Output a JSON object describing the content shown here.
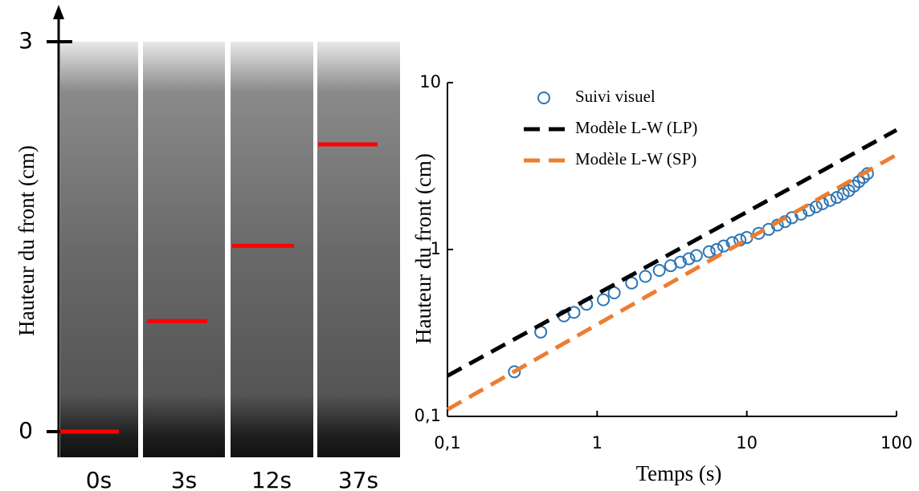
{
  "chart_data": [
    {
      "type": "strip",
      "ylabel": "Hauteur du front (cm)",
      "categories": [
        "0s",
        "3s",
        "12s",
        "37s"
      ],
      "values": [
        0,
        0.85,
        1.43,
        2.21
      ],
      "color": "#ff0000",
      "ylim": [
        0,
        3
      ],
      "yticks": [
        0,
        3
      ]
    },
    {
      "type": "scatter-line",
      "xlabel": "Temps (s)",
      "ylabel": "Hauteur du front (cm)",
      "xscale": "log",
      "yscale": "log",
      "legend": "upper left",
      "xlim": [
        0.1,
        100
      ],
      "ylim": [
        0.1,
        10
      ],
      "xticks": [
        {
          "value": 0.1,
          "label": "0,1"
        },
        1,
        10,
        100
      ],
      "yticks": [
        {
          "value": 0.1,
          "label": "0,1"
        },
        1,
        10
      ],
      "series": [
        {
          "name": "Suivi visuel",
          "kind": "markers",
          "color": "#2e75b6",
          "x": [
            0.28,
            0.42,
            0.6,
            0.7,
            0.85,
            1.1,
            1.3,
            1.7,
            2.1,
            2.6,
            3.1,
            3.6,
            4.1,
            4.6,
            5.6,
            6.3,
            7,
            8,
            9,
            10,
            12,
            14,
            16,
            18,
            20,
            23,
            26,
            29,
            32,
            36,
            40,
            44,
            48,
            52,
            56,
            60,
            64
          ],
          "values": [
            0.185,
            0.32,
            0.4,
            0.42,
            0.47,
            0.5,
            0.55,
            0.63,
            0.69,
            0.75,
            0.8,
            0.84,
            0.88,
            0.92,
            0.97,
            1.0,
            1.05,
            1.1,
            1.14,
            1.18,
            1.25,
            1.32,
            1.4,
            1.47,
            1.55,
            1.63,
            1.72,
            1.8,
            1.88,
            1.97,
            2.05,
            2.15,
            2.25,
            2.4,
            2.55,
            2.7,
            2.85
          ]
        },
        {
          "name": "Modèle L-W (LP)",
          "kind": "dashed",
          "color": "#000000",
          "x": [
            0.1,
            100
          ],
          "values": [
            0.175,
            5.2
          ]
        },
        {
          "name": "Modèle L-W (SP)",
          "kind": "dashed",
          "color": "#ed7d31",
          "x": [
            0.1,
            100
          ],
          "values": [
            0.11,
            3.7
          ]
        }
      ]
    }
  ]
}
